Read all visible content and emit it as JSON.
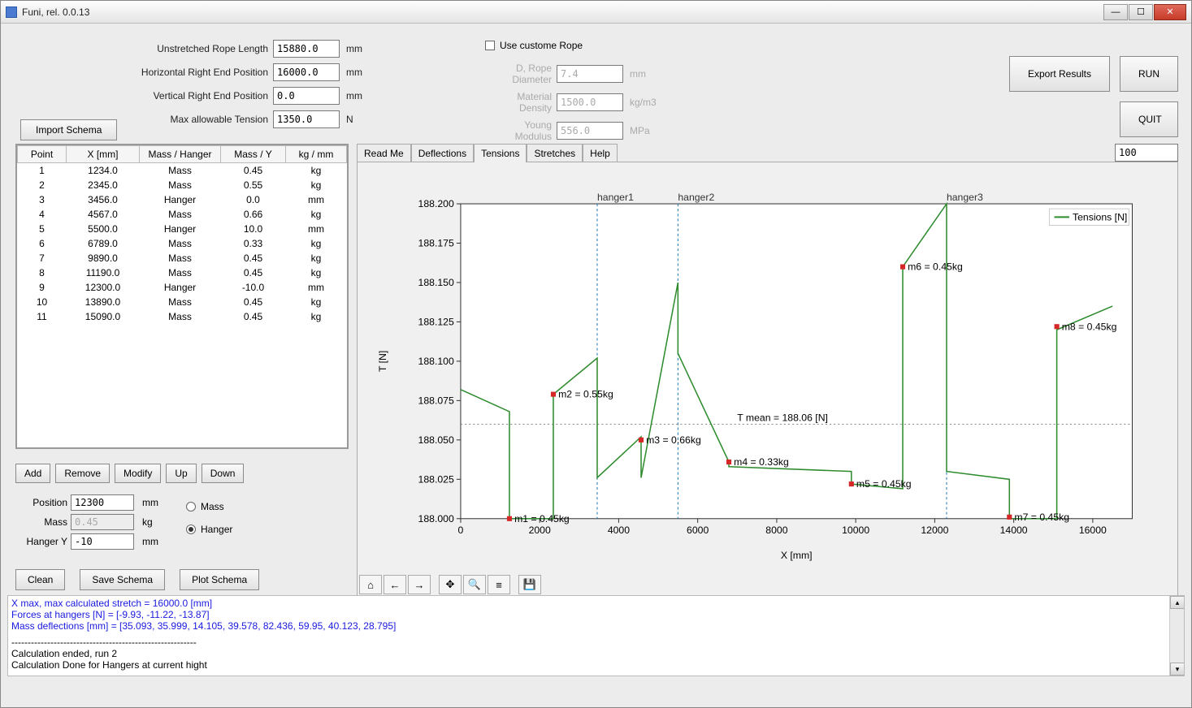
{
  "window": {
    "title": "Funi, rel. 0.0.13"
  },
  "params": {
    "unstretched_label": "Unstretched Rope Length",
    "unstretched_value": "15880.0",
    "unstretched_unit": "mm",
    "hright_label": "Horizontal Right End Position",
    "hright_value": "16000.0",
    "hright_unit": "mm",
    "vright_label": "Vertical Right End Position",
    "vright_value": "0.0",
    "vright_unit": "mm",
    "maxt_label": "Max allowable Tension",
    "maxt_value": "1350.0",
    "maxt_unit": "N"
  },
  "custom_rope": {
    "checkbox_label": "Use custome Rope",
    "diam_label": "D, Rope Diameter",
    "diam_value": "7.4",
    "diam_unit": "mm",
    "density_label": "Material Density",
    "density_value": "1500.0",
    "density_unit": "kg/m3",
    "young_label": "Young Modulus",
    "young_value": "556.0",
    "young_unit": "MPa"
  },
  "buttons": {
    "export": "Export Results",
    "run": "RUN",
    "quit": "QUIT",
    "import_schema": "Import Schema",
    "add": "Add",
    "remove": "Remove",
    "modify": "Modify",
    "up": "Up",
    "down": "Down",
    "clean": "Clean",
    "save_schema": "Save Schema",
    "plot_schema": "Plot Schema"
  },
  "table": {
    "headers": {
      "point": "Point",
      "x": "X [mm]",
      "mh": "Mass / Hanger",
      "my": "Mass / Y",
      "unit": "kg / mm"
    },
    "rows": [
      {
        "p": "1",
        "x": "1234.0",
        "mh": "Mass",
        "my": "0.45",
        "u": "kg"
      },
      {
        "p": "2",
        "x": "2345.0",
        "mh": "Mass",
        "my": "0.55",
        "u": "kg"
      },
      {
        "p": "3",
        "x": "3456.0",
        "mh": "Hanger",
        "my": "0.0",
        "u": "mm"
      },
      {
        "p": "4",
        "x": "4567.0",
        "mh": "Mass",
        "my": "0.66",
        "u": "kg"
      },
      {
        "p": "5",
        "x": "5500.0",
        "mh": "Hanger",
        "my": "10.0",
        "u": "mm"
      },
      {
        "p": "6",
        "x": "6789.0",
        "mh": "Mass",
        "my": "0.33",
        "u": "kg"
      },
      {
        "p": "7",
        "x": "9890.0",
        "mh": "Mass",
        "my": "0.45",
        "u": "kg"
      },
      {
        "p": "8",
        "x": "11190.0",
        "mh": "Mass",
        "my": "0.45",
        "u": "kg"
      },
      {
        "p": "9",
        "x": "12300.0",
        "mh": "Hanger",
        "my": "-10.0",
        "u": "mm"
      },
      {
        "p": "10",
        "x": "13890.0",
        "mh": "Mass",
        "my": "0.45",
        "u": "kg"
      },
      {
        "p": "11",
        "x": "15090.0",
        "mh": "Mass",
        "my": "0.45",
        "u": "kg"
      }
    ]
  },
  "form": {
    "position_label": "Position",
    "position_value": "12300",
    "position_unit": "mm",
    "mass_label": "Mass",
    "mass_value": "0.45",
    "mass_unit": "kg",
    "hangery_label": "Hanger Y",
    "hangery_value": "-10",
    "hangery_unit": "mm",
    "radio_mass": "Mass",
    "radio_hanger": "Hanger"
  },
  "tabs": {
    "readme": "Read Me",
    "deflections": "Deflections",
    "tensions": "Tensions",
    "stretches": "Stretches",
    "help": "Help"
  },
  "zoom": "100",
  "chart": {
    "type": "line",
    "xlabel": "X  [mm]",
    "ylabel": "T [N]",
    "xlim": [
      0,
      17000
    ],
    "ylim": [
      188.0,
      188.2
    ],
    "xticks": [
      0,
      2000,
      4000,
      6000,
      8000,
      10000,
      12000,
      14000,
      16000
    ],
    "yticks": [
      188.0,
      188.025,
      188.05,
      188.075,
      188.1,
      188.125,
      188.15,
      188.175,
      188.2
    ],
    "line_color": "#2e8b2e",
    "marker_color": "#d62728",
    "hanger_line_color": "#1f77b4",
    "mean_label": "T mean = 188.06 [N]",
    "mean_y": 188.06,
    "legend": "Tensions [N]",
    "series": [
      [
        0,
        188.082
      ],
      [
        1234,
        188.068
      ],
      [
        1234,
        188.0
      ],
      [
        2345,
        188.0
      ],
      [
        2345,
        188.079
      ],
      [
        3456,
        188.102
      ],
      [
        3456,
        188.026
      ],
      [
        4567,
        188.052
      ],
      [
        4567,
        188.026
      ],
      [
        5500,
        188.15
      ],
      [
        5500,
        188.105
      ],
      [
        6789,
        188.036
      ],
      [
        6789,
        188.033
      ],
      [
        9890,
        188.03
      ],
      [
        9890,
        188.022
      ],
      [
        11190,
        188.019
      ],
      [
        11190,
        188.16
      ],
      [
        12300,
        188.2
      ],
      [
        12300,
        188.03
      ],
      [
        13890,
        188.025
      ],
      [
        13890,
        188.0
      ],
      [
        15090,
        188.0
      ],
      [
        15090,
        188.12
      ],
      [
        16500,
        188.135
      ]
    ],
    "markers": [
      {
        "x": 1234,
        "y": 188.0,
        "label": "m1 = 0.45kg"
      },
      {
        "x": 2345,
        "y": 188.079,
        "label": "m2 = 0.55kg"
      },
      {
        "x": 4567,
        "y": 188.05,
        "label": "m3 = 0.66kg"
      },
      {
        "x": 6789,
        "y": 188.036,
        "label": "m4 = 0.33kg"
      },
      {
        "x": 9890,
        "y": 188.022,
        "label": "m5 = 0.45kg"
      },
      {
        "x": 11190,
        "y": 188.16,
        "label": "m6 = 0.45kg"
      },
      {
        "x": 13890,
        "y": 188.001,
        "label": "m7 = 0.45kg"
      },
      {
        "x": 15090,
        "y": 188.122,
        "label": "m8 = 0.45kg"
      }
    ],
    "hangers": [
      {
        "x": 3456,
        "label": "hanger1"
      },
      {
        "x": 5500,
        "label": "hanger2"
      },
      {
        "x": 12300,
        "label": "hanger3"
      }
    ],
    "plot_bg": "#ffffff",
    "grid_color": "#cccccc",
    "label_fontsize": 11
  },
  "log": {
    "l1": "X max, max calculated stretch = 16000.0 [mm]",
    "l2": "Forces at hangers [N] = [-9.93, -11.22, -13.87]",
    "l3": "Mass deflections [mm] = [35.093, 35.999, 14.105, 39.578, 82.436, 59.95, 40.123, 28.795]",
    "l4": "---------------------------------------------------------",
    "l5": "Calculation ended, run 2",
    "l6": "Calculation Done for Hangers at current hight"
  }
}
